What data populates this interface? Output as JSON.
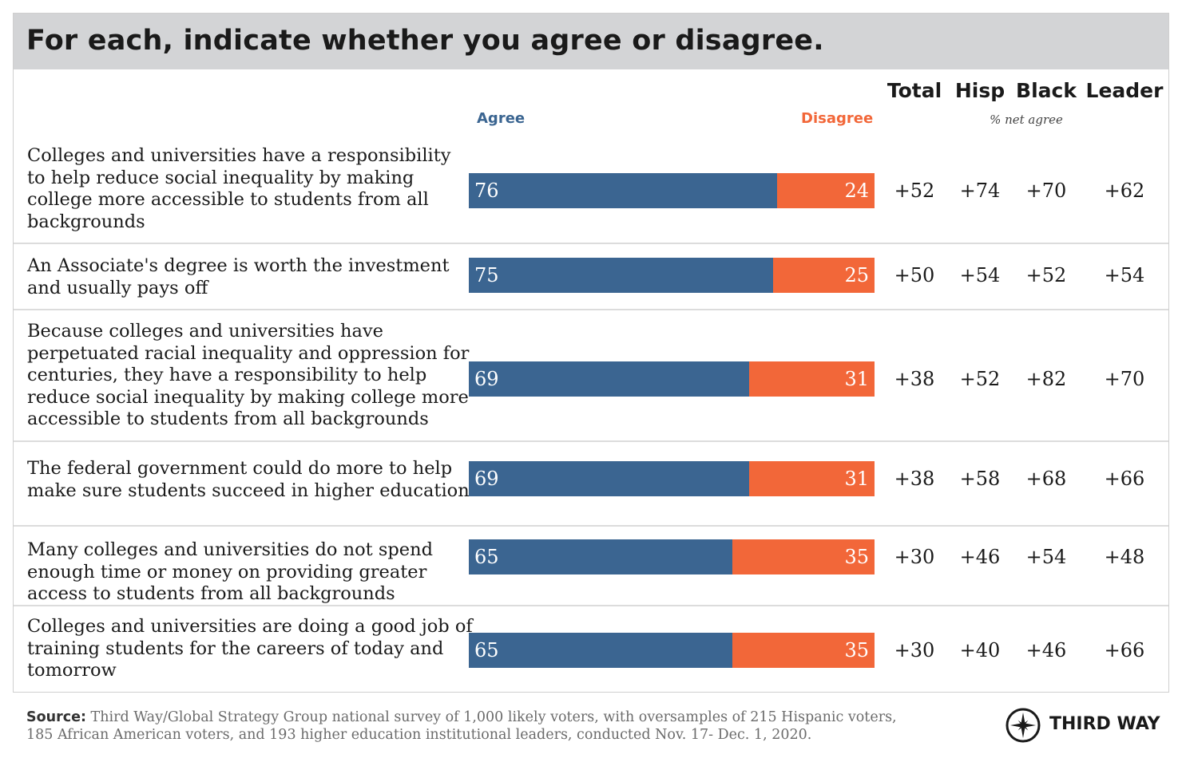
{
  "title": "For each, indicate whether you agree or disagree.",
  "columns": {
    "total": "Total",
    "hisp": "Hisp",
    "black": "Black",
    "leader": "Leader",
    "subnote": "% net agree"
  },
  "legend": {
    "agree": "Agree",
    "disagree": "Disagree"
  },
  "colors": {
    "agree": "#3b6591",
    "disagree": "#f26739",
    "title_bg": "#d3d4d6"
  },
  "rows": [
    {
      "statement": "Colleges and universities have a responsibility to help reduce social inequality by making college more accessible to students from all backgrounds",
      "agree": "76",
      "disagree": "24",
      "total": "+52",
      "hisp": "+74",
      "black": "+70",
      "leader": "+62"
    },
    {
      "statement": "An Associate's degree is worth the investment and usually pays off",
      "agree": "75",
      "disagree": "25",
      "total": "+50",
      "hisp": "+54",
      "black": "+52",
      "leader": "+54"
    },
    {
      "statement": "Because colleges and universities have perpetuated racial inequality and oppression for centuries, they have a responsibility to help reduce social inequality by making college more accessible to students from all backgrounds",
      "agree": "69",
      "disagree": "31",
      "total": "+38",
      "hisp": "+52",
      "black": "+82",
      "leader": "+70"
    },
    {
      "statement": "The federal government could do more to help make sure students succeed in higher education",
      "agree": "69",
      "disagree": "31",
      "total": "+38",
      "hisp": "+58",
      "black": "+68",
      "leader": "+66"
    },
    {
      "statement": "Many colleges and universities do not spend enough time or money on providing greater access to students from all backgrounds",
      "agree": "65",
      "disagree": "35",
      "total": "+30",
      "hisp": "+46",
      "black": "+54",
      "leader": "+48"
    },
    {
      "statement": "Colleges and universities are doing a good job of training students for the careers of today and tomorrow",
      "agree": "65",
      "disagree": "35",
      "total": "+30",
      "hisp": "+40",
      "black": "+46",
      "leader": "+66"
    }
  ],
  "chart_data": {
    "type": "bar",
    "stacked": true,
    "orientation": "horizontal",
    "title": "For each, indicate whether you agree or disagree.",
    "categories": [
      "Colleges and universities have a responsibility to help reduce social inequality by making college more accessible to students from all backgrounds",
      "An Associate's degree is worth the investment and usually pays off",
      "Because colleges and universities have perpetuated racial inequality and oppression for centuries, they have a responsibility to help reduce social inequality by making college more accessible to students from all backgrounds",
      "The federal government could do more to help make sure students succeed in higher education",
      "Many colleges and universities do not spend enough time or money on providing greater access to students from all backgrounds",
      "Colleges and universities are doing a good job of training students for the careers of today and tomorrow"
    ],
    "series": [
      {
        "name": "Agree",
        "values": [
          76,
          75,
          69,
          69,
          65,
          65
        ]
      },
      {
        "name": "Disagree",
        "values": [
          24,
          25,
          31,
          31,
          35,
          35
        ]
      }
    ],
    "net_agree": {
      "Total": [
        52,
        50,
        38,
        38,
        30,
        30
      ],
      "Hisp": [
        74,
        54,
        52,
        58,
        46,
        40
      ],
      "Black": [
        70,
        52,
        82,
        68,
        54,
        46
      ],
      "Leader": [
        62,
        54,
        70,
        66,
        48,
        66
      ]
    },
    "xlim": [
      0,
      100
    ]
  },
  "source": {
    "label": "Source:",
    "text": "Third Way/Global Strategy Group national survey of 1,000 likely voters, with oversamples of 215 Hispanic voters, 185 African American voters, and 193 higher education institutional leaders, conducted Nov. 17- Dec. 1, 2020."
  },
  "logo": {
    "text": "THIRD WAY",
    "icon": "compass-star-icon"
  }
}
